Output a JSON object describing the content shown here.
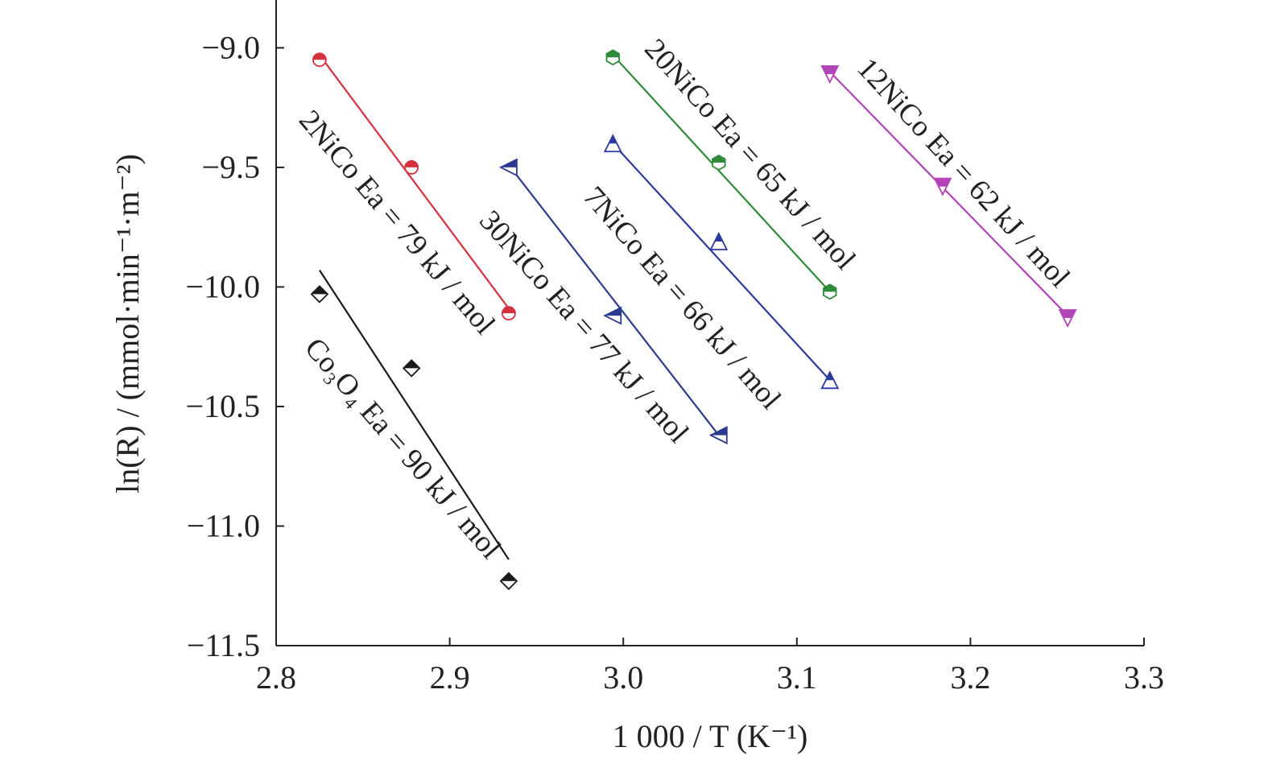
{
  "chart_data": {
    "type": "scatter",
    "xlabel": "1 000 / T (K⁻¹)",
    "ylabel": "ln(R) / (mmol·min⁻¹·m⁻²)",
    "xlim": [
      2.8,
      3.3
    ],
    "ylim": [
      -11.5,
      -8.8
    ],
    "x_ticks": [
      "2.8",
      "2.9",
      "3.0",
      "3.1",
      "3.2",
      "3.3"
    ],
    "y_ticks": [
      "−9.0",
      "−9.5",
      "−10.0",
      "−10.5",
      "−11.0",
      "−11.5"
    ],
    "grid": false,
    "legend": "none",
    "series": [
      {
        "label": "2NiCo Ea = 79 kJ / mol",
        "color": "#d6303f",
        "marker": "half-circle",
        "points": [
          [
            2.825,
            -9.05
          ],
          [
            2.878,
            -9.5
          ],
          [
            2.934,
            -10.11
          ]
        ],
        "fit": [
          [
            2.825,
            -9.03
          ],
          [
            2.934,
            -10.09
          ]
        ]
      },
      {
        "label": "Co₃O₄ Ea = 90 kJ / mol",
        "color": "#1a1a1a",
        "marker": "half-diamond",
        "points": [
          [
            2.825,
            -10.03
          ],
          [
            2.878,
            -10.34
          ],
          [
            2.934,
            -11.23
          ]
        ],
        "fit": [
          [
            2.825,
            -9.93
          ],
          [
            2.934,
            -11.14
          ]
        ]
      },
      {
        "label": "30NiCo Ea = 77 kJ / mol",
        "color": "#2b3a8f",
        "marker": "left-triangle",
        "points": [
          [
            2.934,
            -9.5
          ],
          [
            2.994,
            -10.12
          ],
          [
            3.055,
            -10.62
          ]
        ],
        "fit": [
          [
            2.934,
            -9.49
          ],
          [
            3.055,
            -10.62
          ]
        ]
      },
      {
        "label": "7NiCo Ea = 66 kJ / mol",
        "color": "#2b3aa0",
        "marker": "up-triangle",
        "points": [
          [
            2.994,
            -9.4
          ],
          [
            3.055,
            -9.81
          ],
          [
            3.119,
            -10.39
          ]
        ],
        "fit": [
          [
            2.994,
            -9.4
          ],
          [
            3.119,
            -10.39
          ]
        ]
      },
      {
        "label": "20NiCo Ea = 65 kJ / mol",
        "color": "#2e8b3a",
        "marker": "hexagon",
        "points": [
          [
            2.994,
            -9.04
          ],
          [
            3.055,
            -9.48
          ],
          [
            3.119,
            -10.02
          ]
        ],
        "fit": [
          [
            2.994,
            -9.03
          ],
          [
            3.119,
            -10.02
          ]
        ]
      },
      {
        "label": "12NiCo Ea = 62 kJ / mol",
        "color": "#b244b8",
        "marker": "down-triangle",
        "points": [
          [
            3.119,
            -9.11
          ],
          [
            3.184,
            -9.58
          ],
          [
            3.256,
            -10.13
          ]
        ],
        "fit": [
          [
            3.119,
            -9.1
          ],
          [
            3.256,
            -10.12
          ]
        ]
      }
    ]
  }
}
